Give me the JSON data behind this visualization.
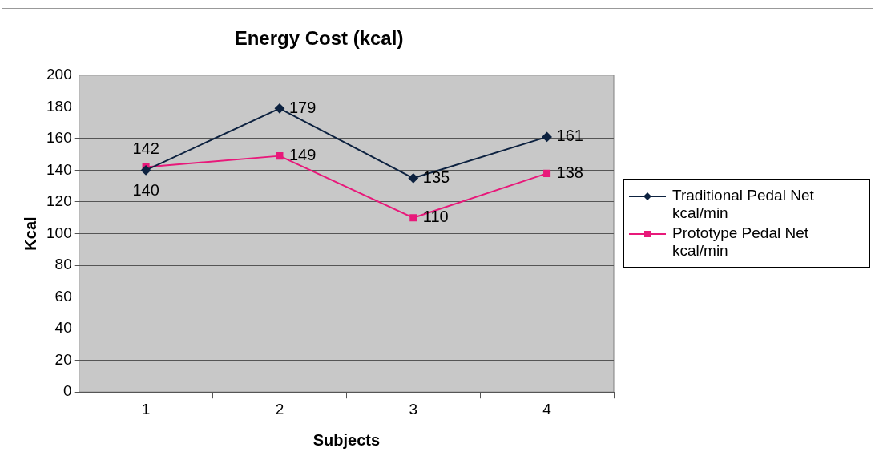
{
  "chart_data": {
    "type": "line",
    "title": "Energy Cost (kcal)",
    "xlabel": "Subjects",
    "ylabel": "Kcal",
    "categories": [
      "1",
      "2",
      "3",
      "4"
    ],
    "series": [
      {
        "name": "Traditional Pedal Net kcal/min",
        "color": "#0d2240",
        "marker": "diamond",
        "values": [
          140,
          179,
          135,
          161
        ]
      },
      {
        "name": "Prototype Pedal Net kcal/min",
        "color": "#e8197a",
        "marker": "square",
        "values": [
          142,
          149,
          110,
          138
        ]
      }
    ],
    "ylim": [
      0,
      200
    ],
    "yticks": [
      0,
      20,
      40,
      60,
      80,
      100,
      120,
      140,
      160,
      180,
      200
    ],
    "grid": "y",
    "legend": "right",
    "data_labels": true
  }
}
